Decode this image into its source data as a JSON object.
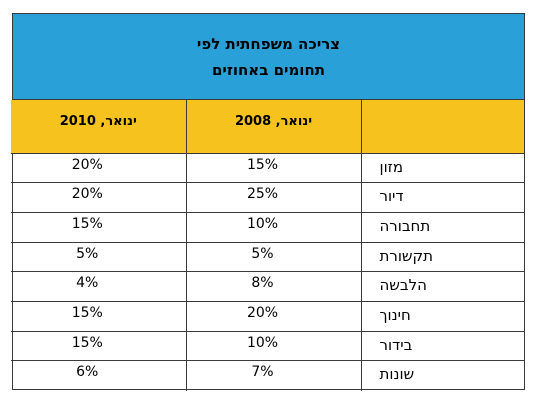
{
  "title": {
    "line1": "צריכה משפחתית לפי",
    "line2": "תחומים באחוזים"
  },
  "table": {
    "headers": {
      "category": "",
      "jan2008": "ינואר, 2008",
      "jan2010": "ינואר, 2010"
    },
    "rows": [
      {
        "category": "מזון",
        "jan2008": "15%",
        "jan2010": "20%"
      },
      {
        "category": "דיור",
        "jan2008": "25%",
        "jan2010": "20%"
      },
      {
        "category": "תחבורה",
        "jan2008": "10%",
        "jan2010": "15%"
      },
      {
        "category": "תקשורת",
        "jan2008": "5%",
        "jan2010": "5%"
      },
      {
        "category": "הלבשה",
        "jan2008": "8%",
        "jan2010": "4%"
      },
      {
        "category": "חינוך",
        "jan2008": "20%",
        "jan2010": "15%"
      },
      {
        "category": "בידור",
        "jan2008": "10%",
        "jan2010": "15%"
      },
      {
        "category": "שונות",
        "jan2008": "7%",
        "jan2010": "6%"
      }
    ]
  },
  "colors": {
    "title_band": "#2aa0d8",
    "header_row": "#f6c31e",
    "grid_lines": "#3a3a3a"
  }
}
